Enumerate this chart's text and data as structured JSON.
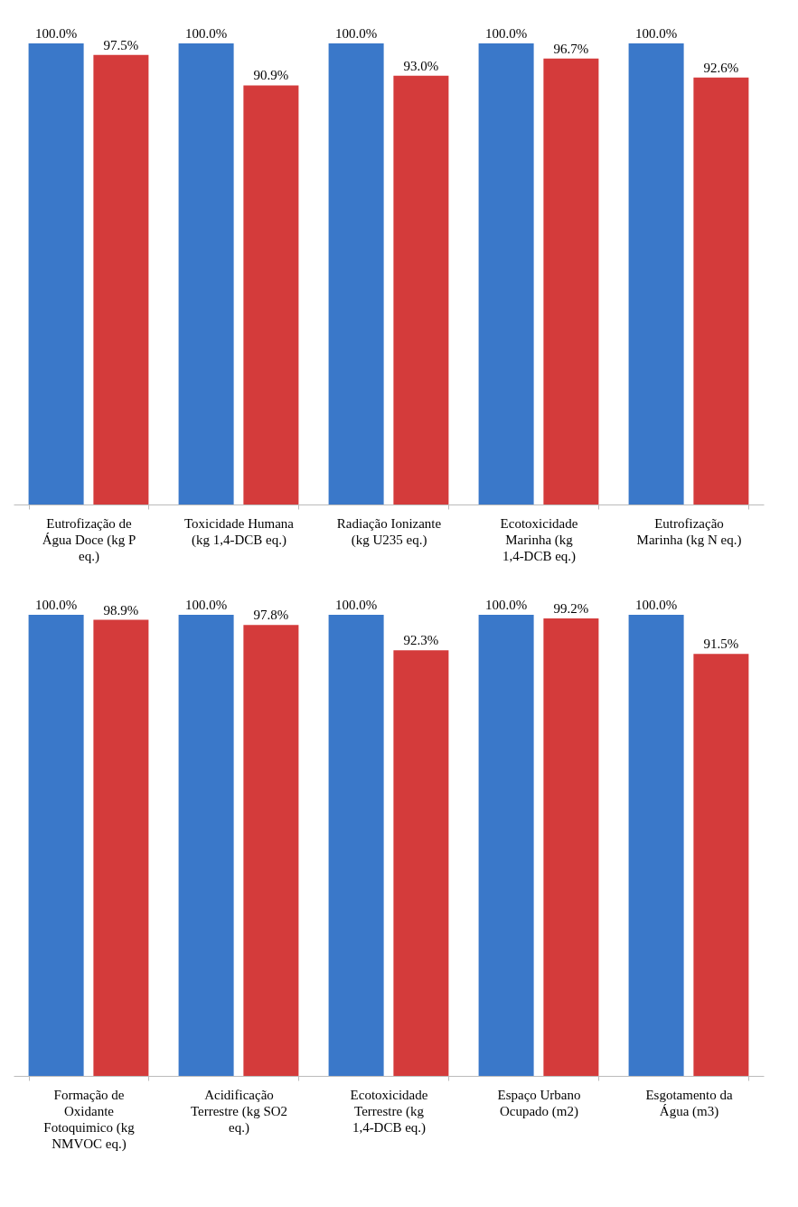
{
  "chart_data": [
    {
      "type": "bar",
      "categories": [
        "Eutrofização de Água Doce (kg P eq.)",
        "Toxicidade Humana (kg 1,4-DCB eq.)",
        "Radiação Ionizante (kg U235 eq.)",
        "Ecotoxicidade Marinha (kg 1,4-DCB eq.)",
        "Eutrofização Marinha (kg N eq.)"
      ],
      "ylim": [
        0,
        100
      ],
      "tick_labels": "x",
      "series": [
        {
          "color": "#3a78c9",
          "values": [
            100.0,
            100.0,
            100.0,
            100.0,
            100.0
          ],
          "value_labels": [
            "100.0%",
            "100.0%",
            "100.0%",
            "100.0%",
            "100.0%"
          ]
        },
        {
          "color": "#d43b3b",
          "values": [
            97.5,
            90.9,
            93.0,
            96.7,
            92.6
          ],
          "value_labels": [
            "97.5%",
            "90.9%",
            "93.0%",
            "96.7%",
            "92.6%"
          ]
        }
      ]
    },
    {
      "type": "bar",
      "categories": [
        "Formação de Oxidante Fotoquimico (kg NMVOC eq.)",
        "Acidificação Terrestre (kg SO2 eq.)",
        "Ecotoxicidade Terrestre (kg 1,4-DCB eq.)",
        "Espaço Urbano Ocupado (m2)",
        "Esgotamento da Água (m3)"
      ],
      "ylim": [
        0,
        100
      ],
      "tick_labels": "x",
      "series": [
        {
          "color": "#3a78c9",
          "values": [
            100.0,
            100.0,
            100.0,
            100.0,
            100.0
          ],
          "value_labels": [
            "100.0%",
            "100.0%",
            "100.0%",
            "100.0%",
            "100.0%"
          ]
        },
        {
          "color": "#d43b3b",
          "values": [
            98.9,
            97.8,
            92.3,
            99.2,
            91.5
          ],
          "value_labels": [
            "98.9%",
            "97.8%",
            "92.3%",
            "99.2%",
            "91.5%"
          ]
        }
      ]
    }
  ]
}
